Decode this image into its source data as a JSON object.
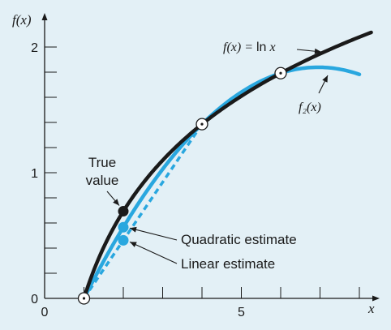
{
  "chart_data": {
    "type": "line",
    "title": "",
    "xlabel": "x",
    "ylabel": "f(x)",
    "xlim": [
      0,
      8
    ],
    "ylim": [
      0,
      2.25
    ],
    "xticks": [
      0,
      1,
      2,
      3,
      4,
      5,
      6,
      7,
      8
    ],
    "yticks": [
      0,
      0.2,
      0.4,
      0.6,
      0.8,
      1,
      1.2,
      1.4,
      1.6,
      1.8,
      2
    ],
    "x_tick_labels": [
      {
        "value": 0,
        "label": "0"
      },
      {
        "value": 5,
        "label": "5"
      }
    ],
    "y_tick_labels": [
      {
        "value": 0,
        "label": "0"
      },
      {
        "value": 1,
        "label": "1"
      },
      {
        "value": 2,
        "label": "2"
      }
    ],
    "grid": false,
    "series": [
      {
        "name": "f(x) = ln x",
        "kind": "function",
        "expression": "ln(x)",
        "x_range": [
          1,
          8.3
        ],
        "color": "#1a1a1a"
      },
      {
        "name": "f₂(x)",
        "kind": "quadratic",
        "nodes": [
          [
            1,
            0
          ],
          [
            4,
            1.386294
          ],
          [
            6,
            1.791759
          ]
        ],
        "x_range": [
          1,
          8
        ],
        "color": "#29a7df"
      },
      {
        "name": "Linear estimate",
        "kind": "line",
        "points": [
          [
            1,
            0
          ],
          [
            4,
            1.386294
          ]
        ],
        "dashed": true,
        "color": "#29a7df"
      }
    ],
    "points": [
      {
        "role": "node",
        "x": 1,
        "y": 0
      },
      {
        "role": "node",
        "x": 4,
        "y": 1.386294
      },
      {
        "role": "node",
        "x": 6,
        "y": 1.791759
      },
      {
        "role": "true-value",
        "x": 2,
        "y": 0.693147
      },
      {
        "role": "quadratic-estimate",
        "x": 2,
        "y": 0.565844
      },
      {
        "role": "linear-estimate",
        "x": 2,
        "y": 0.462098
      }
    ],
    "annotations": {
      "fx_label_prefix": "f(x) = ",
      "fx_label_ln": "ln",
      "fx_label_x": "x",
      "f2_label": "f₂(x)",
      "true_value": [
        "True",
        "value"
      ],
      "quadratic_estimate": "Quadratic estimate",
      "linear_estimate": "Linear estimate"
    },
    "colors": {
      "background": "#e3f0f6",
      "axis": "#1a1a1a",
      "true_curve": "#1a1a1a",
      "estimate": "#29a7df"
    }
  }
}
